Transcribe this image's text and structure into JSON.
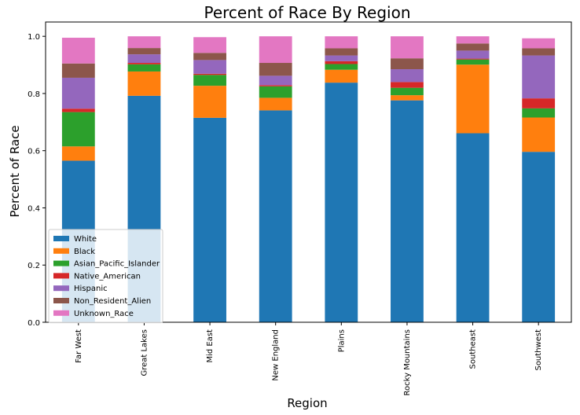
{
  "chart_data": {
    "type": "bar",
    "stacked": true,
    "title": "Percent of Race By Region",
    "xlabel": "Region",
    "ylabel": "Percent of Race",
    "ylim": [
      0,
      1.05
    ],
    "yticks": [
      0.0,
      0.2,
      0.4,
      0.6,
      0.8,
      1.0
    ],
    "ytick_labels": [
      "0.0",
      "0.2",
      "0.4",
      "0.6",
      "0.8",
      "1.0"
    ],
    "legend_position": "lower-left",
    "grid": false,
    "categories": [
      "Far West",
      "Great Lakes",
      "Mid East",
      "New England",
      "Plains",
      "Rocky Mountains",
      "Southeast",
      "Southwest"
    ],
    "series": [
      {
        "name": "White",
        "color": "#1f77b4",
        "values": [
          0.565,
          0.792,
          0.715,
          0.741,
          0.838,
          0.776,
          0.661,
          0.596
        ]
      },
      {
        "name": "Black",
        "color": "#ff7f0e",
        "values": [
          0.05,
          0.085,
          0.112,
          0.044,
          0.045,
          0.018,
          0.24,
          0.12
        ]
      },
      {
        "name": "Asian_Pacific_Islander",
        "color": "#2ca02c",
        "values": [
          0.12,
          0.025,
          0.038,
          0.04,
          0.02,
          0.026,
          0.018,
          0.032
        ]
      },
      {
        "name": "Native_American",
        "color": "#d62728",
        "values": [
          0.012,
          0.005,
          0.004,
          0.004,
          0.01,
          0.02,
          0.003,
          0.035
        ]
      },
      {
        "name": "Hispanic",
        "color": "#9467bd",
        "values": [
          0.108,
          0.03,
          0.048,
          0.033,
          0.02,
          0.045,
          0.028,
          0.15
        ]
      },
      {
        "name": "Non_Resident_Alien",
        "color": "#8c564b",
        "values": [
          0.05,
          0.022,
          0.025,
          0.045,
          0.025,
          0.038,
          0.025,
          0.025
        ]
      },
      {
        "name": "Unknown_Race",
        "color": "#e377c2",
        "values": [
          0.09,
          0.041,
          0.055,
          0.093,
          0.042,
          0.077,
          0.025,
          0.035
        ]
      }
    ]
  }
}
